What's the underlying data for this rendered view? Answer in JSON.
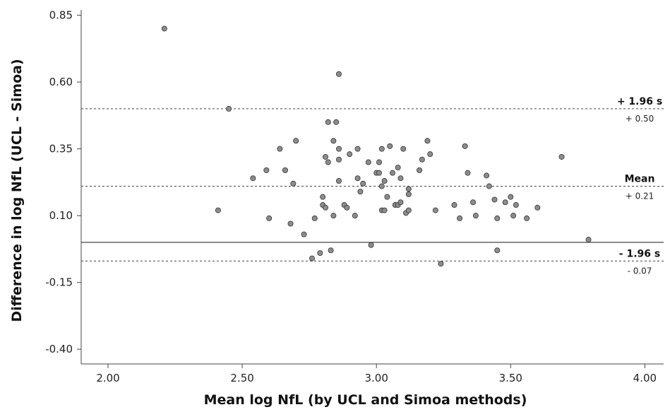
{
  "chart_data": {
    "type": "scatter",
    "title": "",
    "xlabel": "Mean log NfL (by UCL and Simoa methods)",
    "ylabel": "Difference in log NfL (UCL - Simoa)",
    "xlim": [
      1.9,
      4.07
    ],
    "ylim": [
      -0.455,
      0.87
    ],
    "xticks": [
      2.0,
      2.5,
      3.0,
      3.5,
      4.0
    ],
    "xtick_labels": [
      "2.00",
      "2.50",
      "3.00",
      "3.50",
      "4.00"
    ],
    "yticks": [
      0.85,
      0.6,
      0.35,
      0.1,
      -0.15,
      -0.4
    ],
    "ytick_labels": [
      "0.85",
      "0.60",
      "0.35",
      "0.10",
      "-0.15",
      "-0.40"
    ],
    "grid": false,
    "zero_line": 0.0,
    "reference_lines": [
      {
        "y": 0.5,
        "style": "dotted",
        "label": "+ 1.96 s",
        "value_label": "+ 0.50"
      },
      {
        "y": 0.21,
        "style": "dotted",
        "label": "Mean",
        "value_label": "+ 0.21"
      },
      {
        "y": -0.07,
        "style": "dotted",
        "label": "- 1.96 s",
        "value_label": "- 0.07"
      }
    ],
    "point_color": "#8c8c8c",
    "points": [
      [
        2.21,
        0.8
      ],
      [
        2.41,
        0.12
      ],
      [
        2.45,
        0.5
      ],
      [
        2.54,
        0.24
      ],
      [
        2.59,
        0.27
      ],
      [
        2.6,
        0.09
      ],
      [
        2.64,
        0.35
      ],
      [
        2.66,
        0.27
      ],
      [
        2.68,
        0.07
      ],
      [
        2.69,
        0.22
      ],
      [
        2.7,
        0.38
      ],
      [
        2.73,
        0.03
      ],
      [
        2.76,
        -0.06
      ],
      [
        2.77,
        0.09
      ],
      [
        2.79,
        -0.04
      ],
      [
        2.8,
        0.17
      ],
      [
        2.8,
        0.14
      ],
      [
        2.81,
        0.13
      ],
      [
        2.81,
        0.32
      ],
      [
        2.82,
        0.3
      ],
      [
        2.82,
        0.45
      ],
      [
        2.83,
        -0.03
      ],
      [
        2.84,
        0.38
      ],
      [
        2.84,
        0.1
      ],
      [
        2.85,
        0.45
      ],
      [
        2.86,
        0.35
      ],
      [
        2.86,
        0.31
      ],
      [
        2.86,
        0.23
      ],
      [
        2.86,
        0.63
      ],
      [
        2.88,
        0.14
      ],
      [
        2.89,
        0.13
      ],
      [
        2.9,
        0.33
      ],
      [
        2.92,
        0.1
      ],
      [
        2.93,
        0.35
      ],
      [
        2.93,
        0.24
      ],
      [
        2.94,
        0.19
      ],
      [
        2.95,
        0.22
      ],
      [
        2.97,
        0.3
      ],
      [
        2.98,
        -0.01
      ],
      [
        3.0,
        0.26
      ],
      [
        3.01,
        0.3
      ],
      [
        3.01,
        0.26
      ],
      [
        3.02,
        0.21
      ],
      [
        3.02,
        0.35
      ],
      [
        3.02,
        0.12
      ],
      [
        3.03,
        0.23
      ],
      [
        3.03,
        0.12
      ],
      [
        3.04,
        0.17
      ],
      [
        3.05,
        0.36
      ],
      [
        3.06,
        0.26
      ],
      [
        3.07,
        0.14
      ],
      [
        3.08,
        0.14
      ],
      [
        3.08,
        0.28
      ],
      [
        3.09,
        0.24
      ],
      [
        3.09,
        0.15
      ],
      [
        3.1,
        0.35
      ],
      [
        3.11,
        0.11
      ],
      [
        3.12,
        0.2
      ],
      [
        3.12,
        0.18
      ],
      [
        3.12,
        0.12
      ],
      [
        3.16,
        0.27
      ],
      [
        3.17,
        0.31
      ],
      [
        3.19,
        0.38
      ],
      [
        3.2,
        0.33
      ],
      [
        3.22,
        0.12
      ],
      [
        3.24,
        -0.08
      ],
      [
        3.29,
        0.14
      ],
      [
        3.31,
        0.09
      ],
      [
        3.33,
        0.36
      ],
      [
        3.34,
        0.26
      ],
      [
        3.36,
        0.15
      ],
      [
        3.37,
        0.1
      ],
      [
        3.41,
        0.25
      ],
      [
        3.42,
        0.21
      ],
      [
        3.44,
        0.16
      ],
      [
        3.45,
        0.09
      ],
      [
        3.45,
        -0.03
      ],
      [
        3.48,
        0.15
      ],
      [
        3.5,
        0.17
      ],
      [
        3.51,
        0.1
      ],
      [
        3.52,
        0.14
      ],
      [
        3.56,
        0.09
      ],
      [
        3.6,
        0.13
      ],
      [
        3.69,
        0.32
      ],
      [
        3.79,
        0.01
      ]
    ]
  }
}
